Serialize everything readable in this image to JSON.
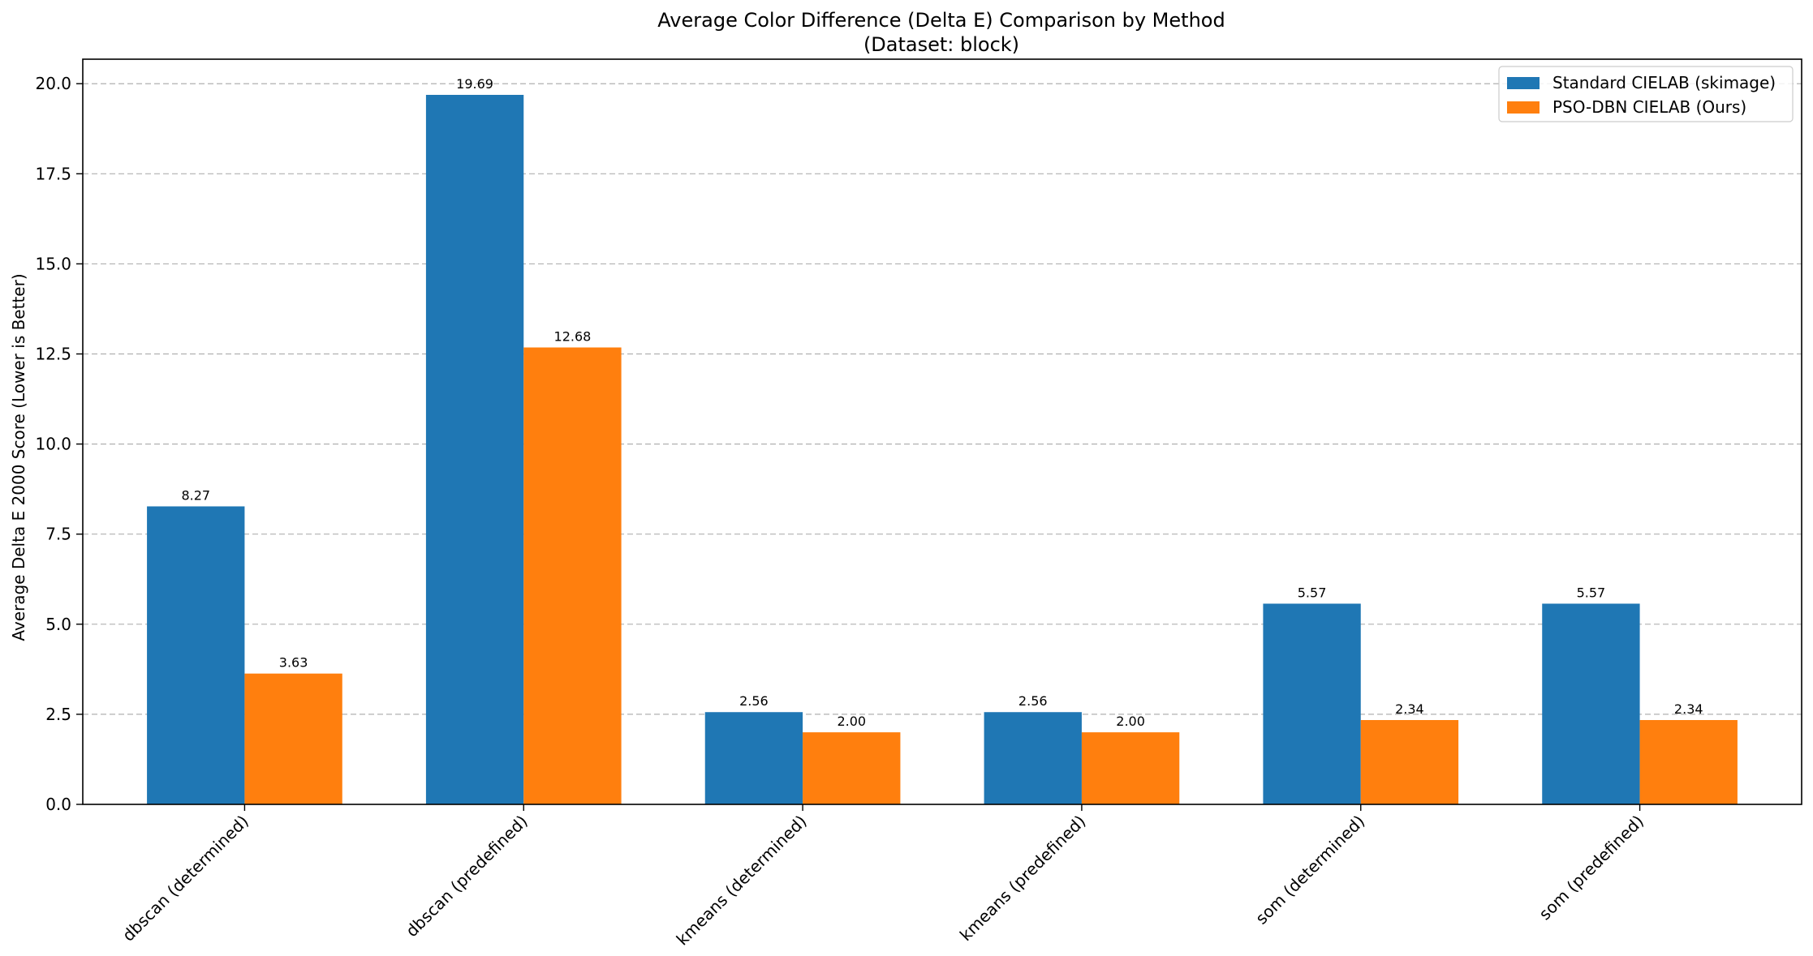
{
  "chart_data": {
    "type": "bar",
    "title": "Average Color Difference (Delta E) Comparison by Method",
    "subtitle": "(Dataset: block)",
    "xlabel": "",
    "ylabel": "Average Delta E 2000 Score (Lower is Better)",
    "ylim": [
      0,
      20.68
    ],
    "yticks": [
      0.0,
      2.5,
      5.0,
      7.5,
      10.0,
      12.5,
      15.0,
      17.5,
      20.0
    ],
    "ytick_labels": [
      "0.0",
      "2.5",
      "5.0",
      "7.5",
      "10.0",
      "12.5",
      "15.0",
      "17.5",
      "20.0"
    ],
    "grid": "y-dashed",
    "legend_position": "top-right",
    "categories": [
      "dbscan (determined)",
      "dbscan (predefined)",
      "kmeans (determined)",
      "kmeans (predefined)",
      "som (determined)",
      "som (predefined)"
    ],
    "series": [
      {
        "name": "Standard CIELAB (skimage)",
        "color": "#1f77b4",
        "values": [
          8.27,
          19.69,
          2.56,
          2.56,
          5.57,
          5.57
        ],
        "labels": [
          "8.27",
          "19.69",
          "2.56",
          "2.56",
          "5.57",
          "5.57"
        ]
      },
      {
        "name": "PSO-DBN CIELAB (Ours)",
        "color": "#ff7f0e",
        "values": [
          3.63,
          12.68,
          2.0,
          2.0,
          2.34,
          2.34
        ],
        "labels": [
          "3.63",
          "12.68",
          "2.00",
          "2.00",
          "2.34",
          "2.34"
        ]
      }
    ]
  }
}
